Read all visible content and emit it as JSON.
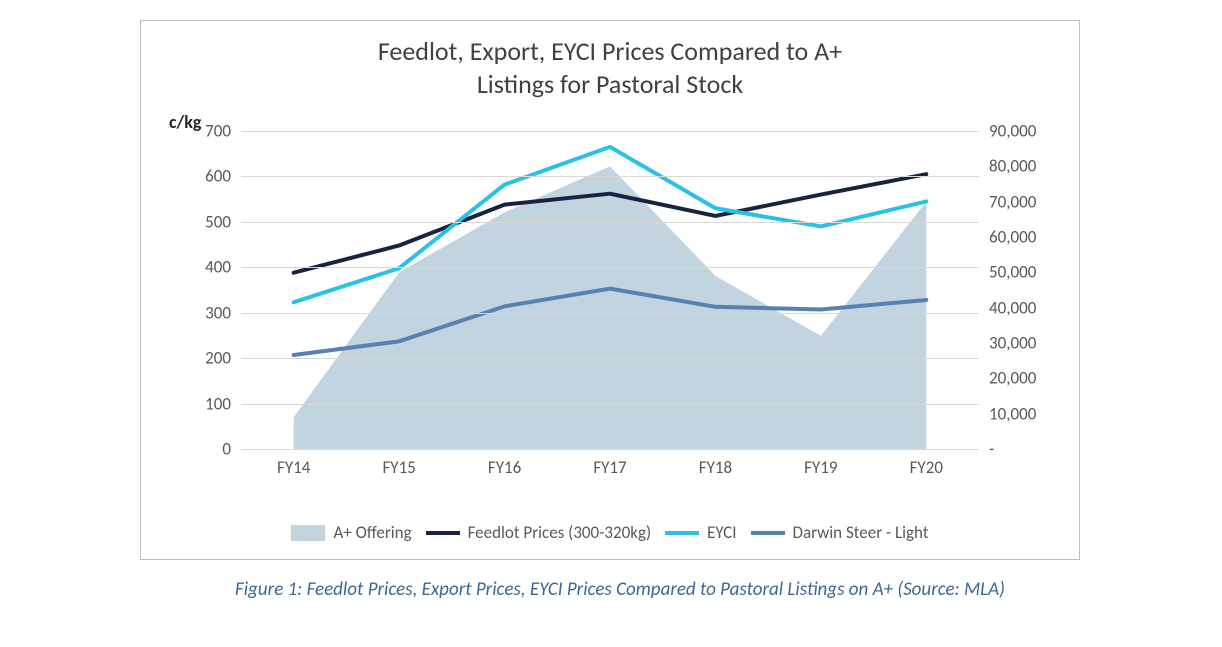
{
  "chart": {
    "title_line1": "Feedlot, Export, EYCI Prices Compared to A+",
    "title_line2": "Listings for Pastoral Stock",
    "title_fontsize": 26,
    "unit_label": "c/kg",
    "unit_label_fontsize": 18,
    "background_color": "#ffffff",
    "border_color": "#bfbfbf",
    "grid_color": "#d9d9d9",
    "axis_label_color": "#595959",
    "axis_label_fontsize": 17,
    "categories": [
      "FY14",
      "FY15",
      "FY16",
      "FY17",
      "FY18",
      "FY19",
      "FY20"
    ],
    "left_axis": {
      "min": 0,
      "max": 700,
      "step": 100,
      "labels": [
        "0",
        "100",
        "200",
        "300",
        "400",
        "500",
        "600",
        "700"
      ]
    },
    "right_axis": {
      "min": 0,
      "max": 90000,
      "step": 10000,
      "labels": [
        "-",
        "10,000",
        "20,000",
        "30,000",
        "40,000",
        "50,000",
        "60,000",
        "70,000",
        "80,000",
        "90,000"
      ]
    },
    "series": {
      "a_plus_offering": {
        "type": "area",
        "axis": "right",
        "label": "A+ Offering",
        "color": "#c2d4df",
        "fill_opacity": 1.0,
        "data": [
          9000,
          50000,
          67000,
          80000,
          49000,
          32000,
          70000
        ]
      },
      "feedlot": {
        "type": "line",
        "axis": "left",
        "label": "Feedlot Prices (300-320kg)",
        "color": "#17243f",
        "line_width": 4,
        "data": [
          388,
          448,
          538,
          562,
          513,
          560,
          605
        ]
      },
      "eyci": {
        "type": "line",
        "axis": "left",
        "label": "EYCI",
        "color": "#29c1e8",
        "line_width": 4,
        "data": [
          323,
          398,
          582,
          665,
          530,
          490,
          545
        ]
      },
      "darwin": {
        "type": "line",
        "axis": "left",
        "label": "Darwin Steer - Light",
        "color": "#5980b3",
        "line_width": 4,
        "data": [
          207,
          237,
          314,
          353,
          313,
          307,
          328
        ]
      }
    },
    "legend_order": [
      "a_plus_offering",
      "feedlot",
      "eyci",
      "darwin"
    ],
    "legend_fontsize": 17
  },
  "caption": {
    "text": "Figure 1: Feedlot Prices, Export Prices, EYCI Prices Compared to Pastoral Listings on A+ (Source: MLA)",
    "color": "#3d6894",
    "fontsize": 19,
    "italic": true
  }
}
